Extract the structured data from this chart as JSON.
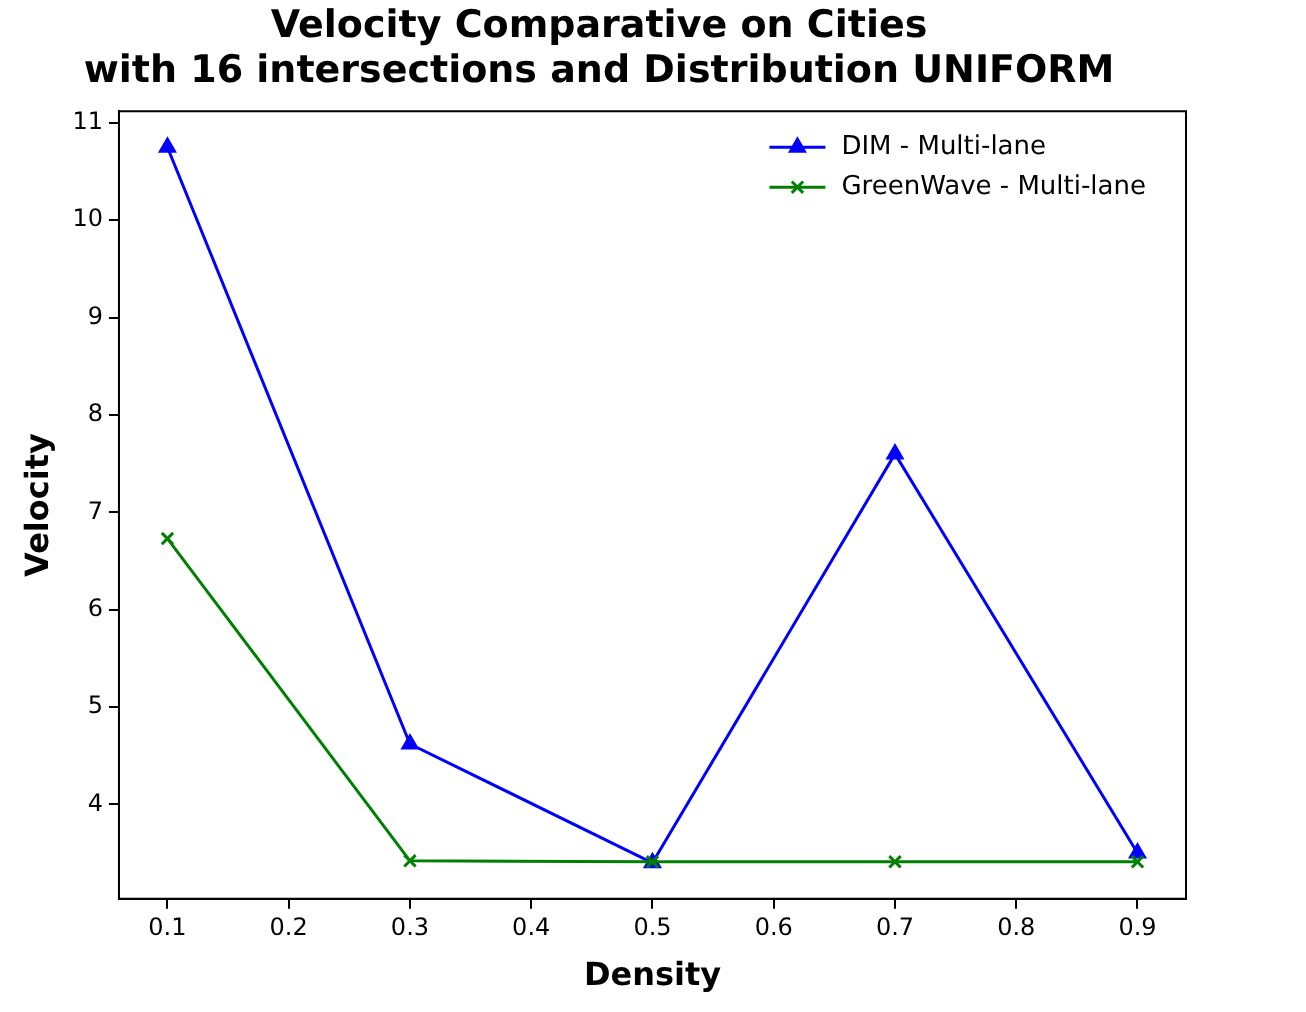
{
  "chart_data": {
    "type": "line",
    "title": "Velocity Comparative on Cities\nwith 16 intersections and Distribution UNIFORM",
    "xlabel": "Density",
    "ylabel": "Velocity",
    "x": [
      0.1,
      0.3,
      0.5,
      0.7,
      0.9
    ],
    "series": [
      {
        "name": "DIM - Multi-lane",
        "color": "#0000ff",
        "marker": "triangle",
        "values": [
          10.75,
          4.62,
          3.4,
          7.6,
          3.5
        ]
      },
      {
        "name": "GreenWave - Multi-lane",
        "color": "#008000",
        "marker": "cross",
        "values": [
          6.73,
          3.42,
          3.41,
          3.41,
          3.41
        ]
      }
    ],
    "xlim": [
      0.06,
      0.94
    ],
    "xticks": [
      0.1,
      0.2,
      0.3,
      0.4,
      0.5,
      0.6,
      0.7,
      0.8,
      0.9
    ],
    "ylim": [
      3.03,
      11.12
    ],
    "yticks": [
      4,
      5,
      6,
      7,
      8,
      9,
      10,
      11
    ],
    "grid": false,
    "legend": "top right"
  }
}
